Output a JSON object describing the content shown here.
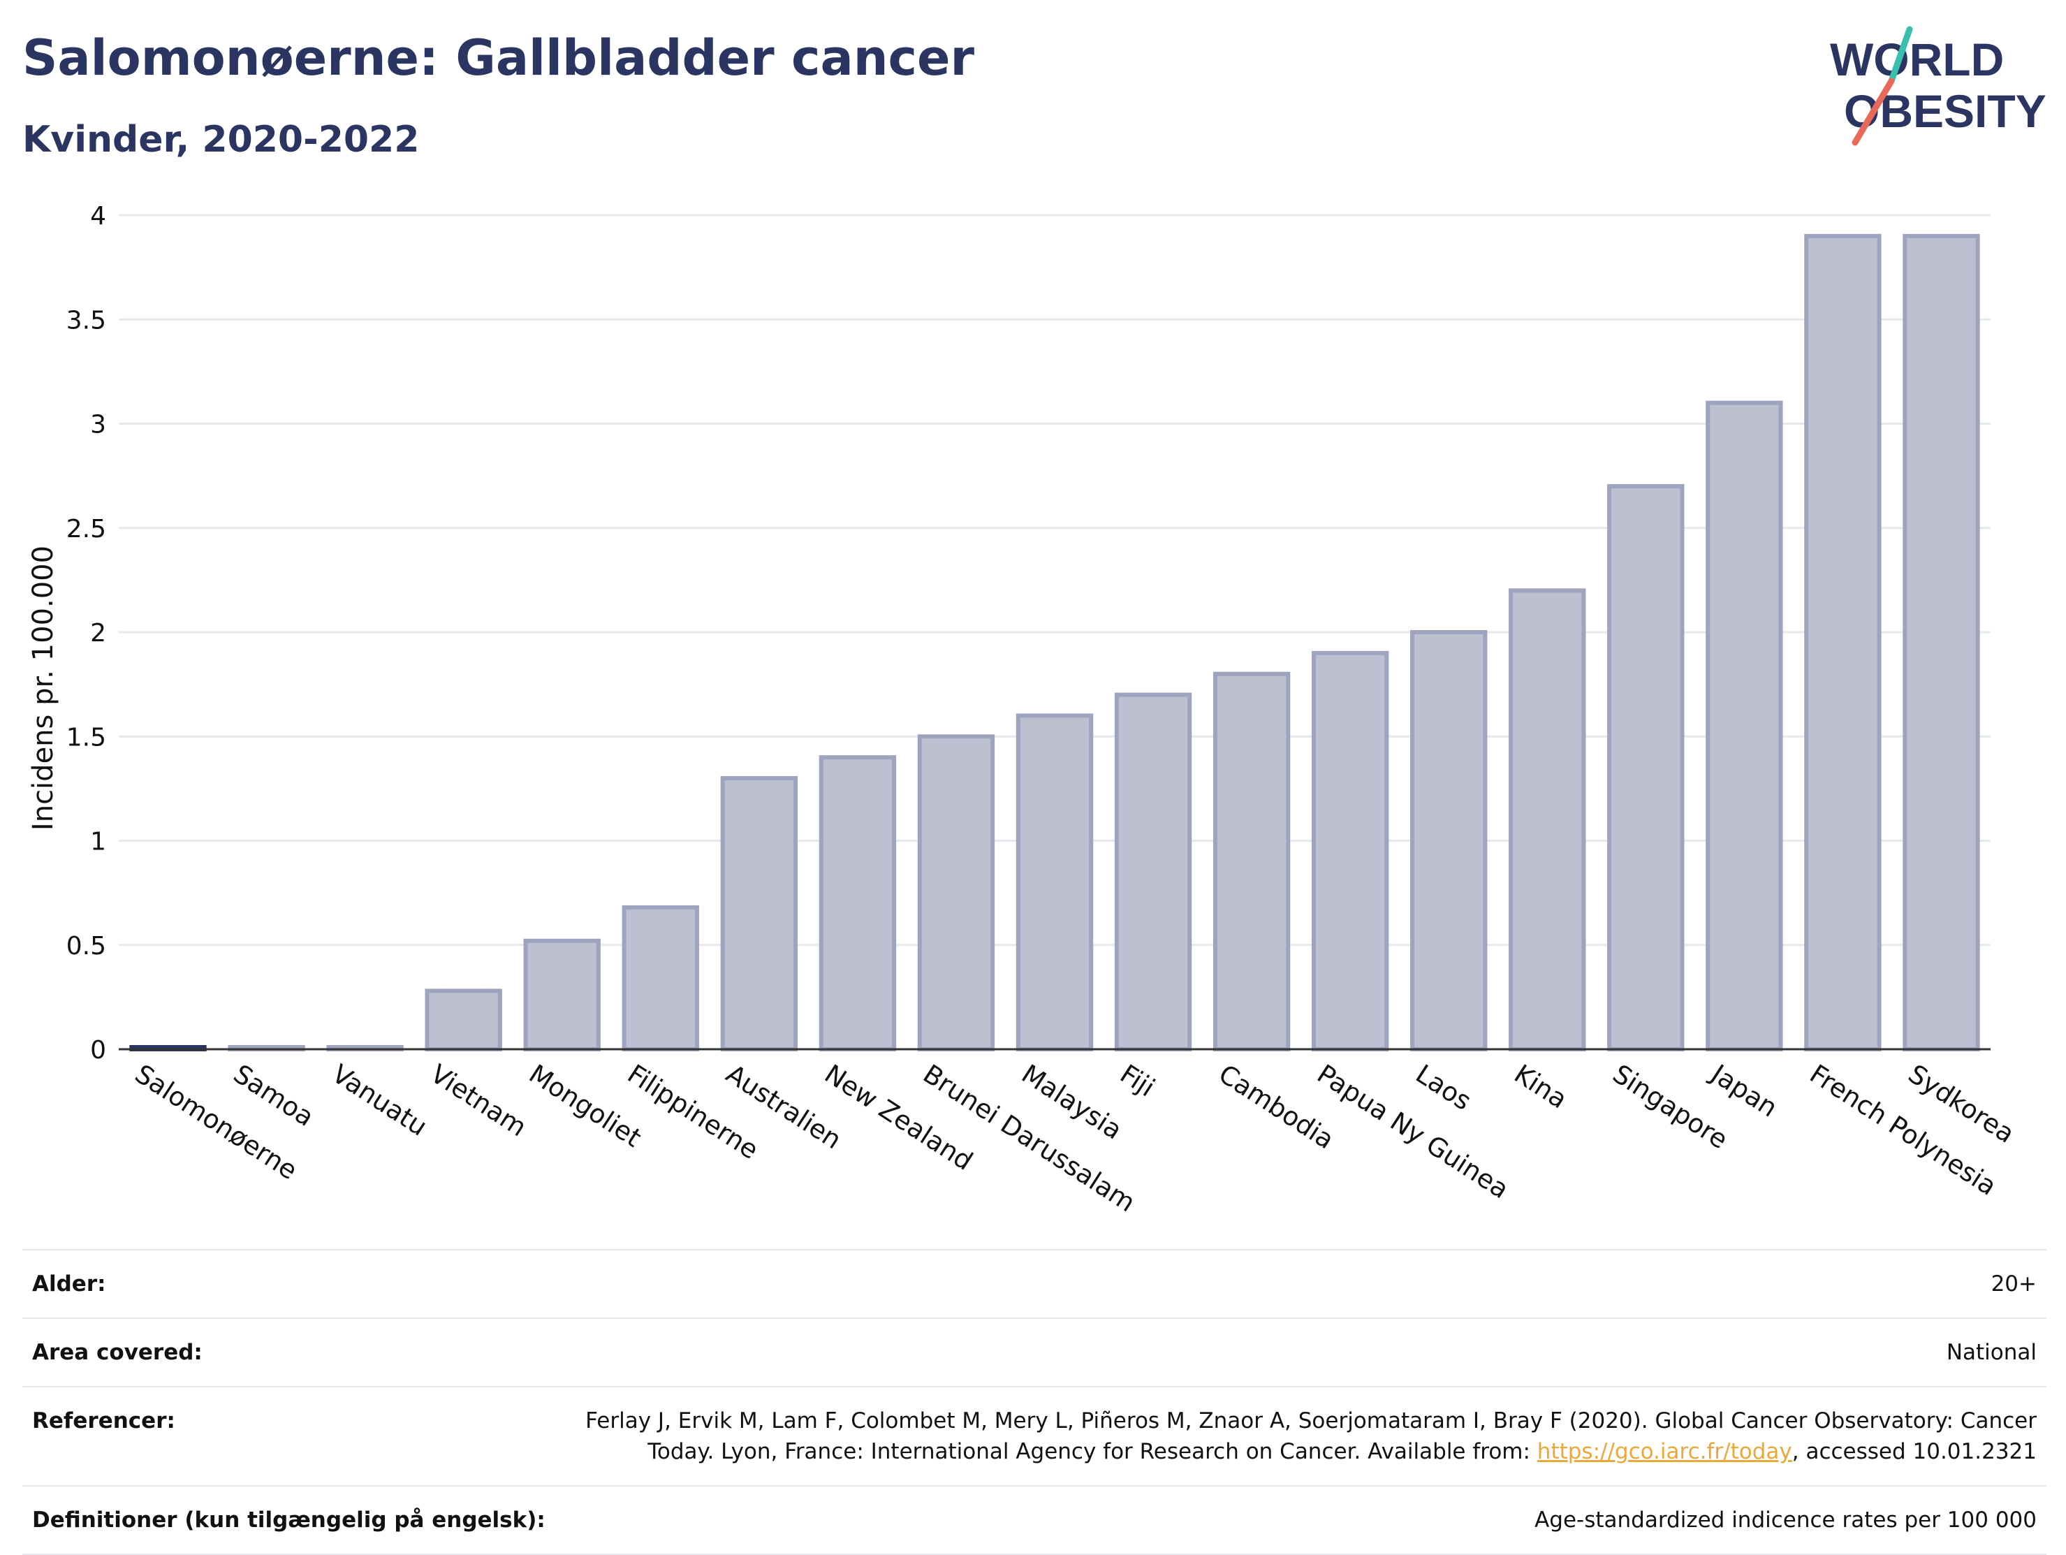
{
  "header": {
    "title": "Salomonøerne: Gallbladder cancer",
    "subtitle": "Kvinder, 2020-2022"
  },
  "logo": {
    "line1": "WORLD",
    "line2": "OBESITY",
    "accent_teal": "#3bbfad",
    "accent_coral": "#e8685a"
  },
  "colors": {
    "bar_fill": "#bcc0d0",
    "bar_stroke": "#9ea4bd",
    "highlight_fill": "#2b3561",
    "text_dark": "#2b3561",
    "grid": "#e6e8ee"
  },
  "chart_data": {
    "type": "bar",
    "ylabel": "Incidens pr. 100.000",
    "ylim": [
      0,
      4
    ],
    "yticks": [
      "0",
      "0.5",
      "1",
      "1.5",
      "2",
      "2.5",
      "3",
      "3.5",
      "4"
    ],
    "ytick_values": [
      0,
      0.5,
      1,
      1.5,
      2,
      2.5,
      3,
      3.5,
      4
    ],
    "grid": true,
    "highlight": "Salomonøerne",
    "categories": [
      "Salomonøerne",
      "Samoa",
      "Vanuatu",
      "Vietnam",
      "Mongoliet",
      "Filippinerne",
      "Australien",
      "New Zealand",
      "Brunei Darussalam",
      "Malaysia",
      "Fiji",
      "Cambodia",
      "Papua Ny Guinea",
      "Laos",
      "Kina",
      "Singapore",
      "Japan",
      "French Polynesia",
      "Sydkorea"
    ],
    "values": [
      0.01,
      0.01,
      0.01,
      0.28,
      0.52,
      0.68,
      1.3,
      1.4,
      1.5,
      1.6,
      1.7,
      1.8,
      1.9,
      2.0,
      2.2,
      2.7,
      3.1,
      3.9,
      3.9
    ]
  },
  "meta": {
    "rows": [
      {
        "label": "Alder:",
        "value": "20+"
      },
      {
        "label": "Area covered:",
        "value": "National"
      },
      {
        "label": "Referencer:",
        "value_pre": "Ferlay J, Ervik M, Lam F, Colombet M, Mery L, Piñeros M, Znaor A, Soerjomataram I, Bray F (2020). Global Cancer Observatory: Cancer Today. Lyon, France: International Agency for Research on Cancer. Available from: ",
        "link": "https://gco.iarc.fr/today",
        "value_post": ", accessed 10.01.2321"
      },
      {
        "label": "Definitioner (kun tilgængelig på engelsk):",
        "value": "Age-standardized indicence rates per 100 000"
      }
    ]
  }
}
